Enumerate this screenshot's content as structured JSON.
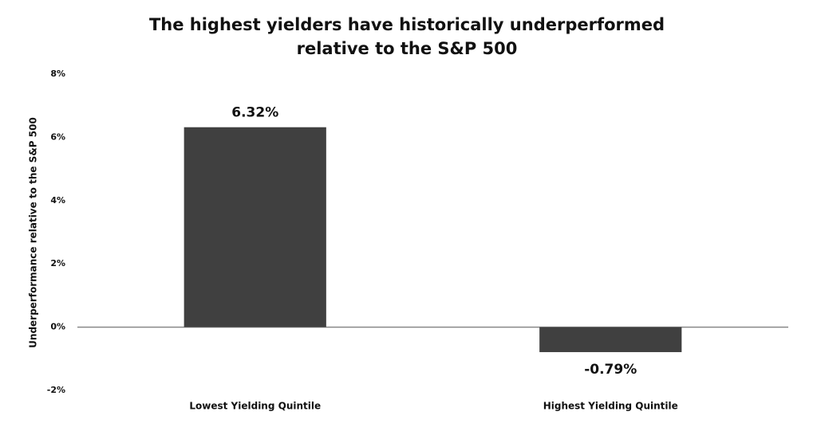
{
  "chart_data": {
    "type": "bar",
    "title": [
      "The highest yielders have historically underperformed",
      "relative to the S&P 500"
    ],
    "y_label": "Underperformance relative to the S&P 500",
    "categories": [
      "Lowest Yielding Quintile",
      "Highest Yielding Quintile"
    ],
    "values": [
      6.32,
      -0.79
    ],
    "value_labels": [
      "6.32%",
      "-0.79%"
    ],
    "color": "#404040",
    "ylim": [
      -2,
      8
    ],
    "yticks": [
      {
        "value": -2,
        "label": "-2%"
      },
      {
        "value": 0,
        "label": "0%"
      },
      {
        "value": 2,
        "label": "2%"
      },
      {
        "value": 4,
        "label": "4%"
      },
      {
        "value": 6,
        "label": "6%"
      },
      {
        "value": 8,
        "label": "8%"
      }
    ],
    "grid": false
  }
}
